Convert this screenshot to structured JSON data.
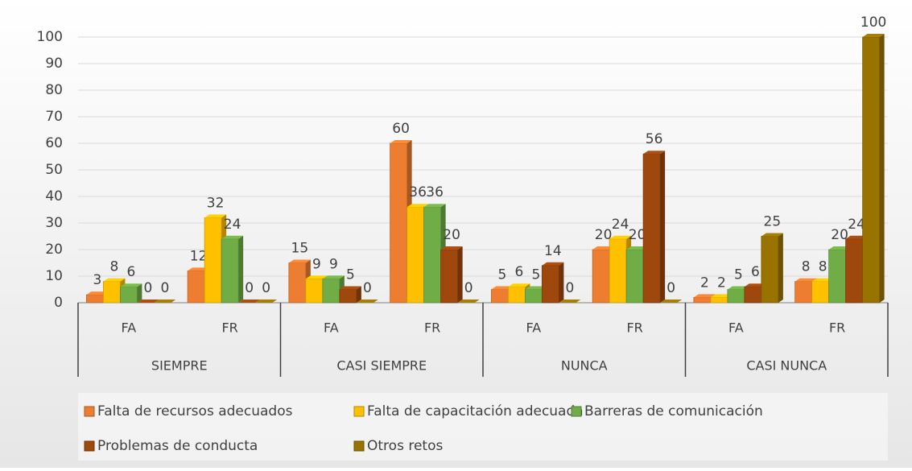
{
  "chart_data": {
    "type": "bar",
    "groups": [
      "SIEMPRE",
      "CASI SIEMPRE",
      "NUNCA",
      "CASI NUNCA"
    ],
    "categories": [
      "FA",
      "FR",
      "FA",
      "FR",
      "FA",
      "FR",
      "FA",
      "FR"
    ],
    "series": [
      {
        "name": "Falta de recursos adecuados",
        "color": "#ed7d31",
        "values": [
          3,
          12,
          15,
          60,
          5,
          20,
          2,
          8
        ]
      },
      {
        "name": "Falta de capacitación adecuada",
        "color": "#ffc000",
        "values": [
          8,
          32,
          9,
          36,
          6,
          24,
          2,
          8
        ]
      },
      {
        "name": "Barreras de comunicación",
        "color": "#70ad47",
        "values": [
          6,
          24,
          9,
          36,
          5,
          20,
          5,
          20
        ]
      },
      {
        "name": "Problemas de conducta",
        "color": "#9e480e",
        "values": [
          0,
          0,
          5,
          20,
          14,
          56,
          6,
          24
        ]
      },
      {
        "name": "Otros retos",
        "color": "#997300",
        "values": [
          0,
          0,
          0,
          0,
          0,
          0,
          25,
          100
        ]
      }
    ],
    "ylim": [
      0,
      100
    ],
    "yticks": [
      0,
      10,
      20,
      30,
      40,
      50,
      60,
      70,
      80,
      90,
      100
    ],
    "grid": true,
    "legend": "bottom"
  }
}
